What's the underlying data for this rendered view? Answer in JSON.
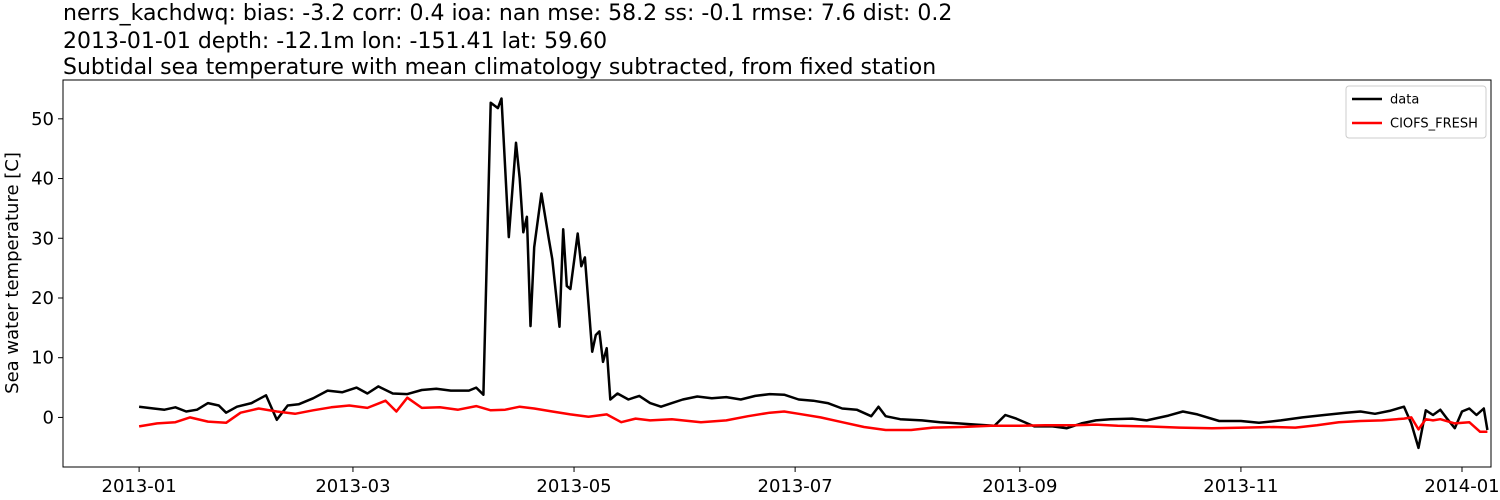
{
  "titles": [
    "nerrs_kachdwq: bias: -3.2  corr: 0.4  ioa: nan  mse: 58.2  ss: -0.1  rmse: 7.6  dist: 0.2",
    "2013-01-01 depth: -12.1m lon: -151.41 lat: 59.60",
    "Subtidal sea temperature with mean climatology subtracted, from fixed station"
  ],
  "chart_data": {
    "type": "line",
    "title": "nerrs_kachdwq: bias: -3.2  corr: 0.4  ioa: nan  mse: 58.2  ss: -0.1  rmse: 7.6  dist: 0.2",
    "xlabel": "",
    "ylabel": "Sea water temperature [C]",
    "ylim": [
      -8.3,
      56.5
    ],
    "xlim": [
      "2012-12-11",
      "2014-01-09"
    ],
    "x_ticks": [
      "2013-01",
      "2013-03",
      "2013-05",
      "2013-07",
      "2013-09",
      "2013-11",
      "2014-01"
    ],
    "y_ticks": [
      0,
      10,
      20,
      30,
      40,
      50
    ],
    "grid": false,
    "legend_position": "top-right",
    "series": [
      {
        "name": "data",
        "color": "#000000",
        "points": [
          [
            "2013-01-01",
            1.8
          ],
          [
            "2013-01-05",
            1.5
          ],
          [
            "2013-01-08",
            1.3
          ],
          [
            "2013-01-11",
            1.7
          ],
          [
            "2013-01-14",
            1.0
          ],
          [
            "2013-01-17",
            1.3
          ],
          [
            "2013-01-20",
            2.4
          ],
          [
            "2013-01-23",
            2.0
          ],
          [
            "2013-01-25",
            0.8
          ],
          [
            "2013-01-28",
            1.8
          ],
          [
            "2013-02-01",
            2.4
          ],
          [
            "2013-02-05",
            3.7
          ],
          [
            "2013-02-08",
            -0.4
          ],
          [
            "2013-02-11",
            2.0
          ],
          [
            "2013-02-14",
            2.2
          ],
          [
            "2013-02-18",
            3.2
          ],
          [
            "2013-02-22",
            4.5
          ],
          [
            "2013-02-26",
            4.2
          ],
          [
            "2013-03-02",
            5.0
          ],
          [
            "2013-03-05",
            4.0
          ],
          [
            "2013-03-08",
            5.2
          ],
          [
            "2013-03-12",
            4.0
          ],
          [
            "2013-03-16",
            3.9
          ],
          [
            "2013-03-20",
            4.6
          ],
          [
            "2013-03-24",
            4.8
          ],
          [
            "2013-03-28",
            4.5
          ],
          [
            "2013-04-02",
            4.5
          ],
          [
            "2013-04-04",
            5.0
          ],
          [
            "2013-04-06",
            3.8
          ],
          [
            "2013-04-08",
            52.7
          ],
          [
            "2013-04-10",
            51.8
          ],
          [
            "2013-04-11",
            53.4
          ],
          [
            "2013-04-13",
            30.2
          ],
          [
            "2013-04-15",
            46.0
          ],
          [
            "2013-04-16",
            40.0
          ],
          [
            "2013-04-17",
            31.0
          ],
          [
            "2013-04-18",
            33.6
          ],
          [
            "2013-04-19",
            15.3
          ],
          [
            "2013-04-20",
            28.5
          ],
          [
            "2013-04-22",
            37.5
          ],
          [
            "2013-04-24",
            30.0
          ],
          [
            "2013-04-25",
            26.5
          ],
          [
            "2013-04-27",
            15.2
          ],
          [
            "2013-04-28",
            31.5
          ],
          [
            "2013-04-29",
            22.0
          ],
          [
            "2013-04-30",
            21.5
          ],
          [
            "2013-05-02",
            30.8
          ],
          [
            "2013-05-03",
            25.3
          ],
          [
            "2013-05-04",
            26.8
          ],
          [
            "2013-05-06",
            11.0
          ],
          [
            "2013-05-07",
            13.8
          ],
          [
            "2013-05-08",
            14.4
          ],
          [
            "2013-05-09",
            9.3
          ],
          [
            "2013-05-10",
            11.6
          ],
          [
            "2013-05-11",
            3.0
          ],
          [
            "2013-05-13",
            4.0
          ],
          [
            "2013-05-16",
            3.0
          ],
          [
            "2013-05-19",
            3.6
          ],
          [
            "2013-05-22",
            2.4
          ],
          [
            "2013-05-25",
            1.8
          ],
          [
            "2013-05-28",
            2.4
          ],
          [
            "2013-05-31",
            3.0
          ],
          [
            "2013-06-04",
            3.5
          ],
          [
            "2013-06-08",
            3.2
          ],
          [
            "2013-06-12",
            3.4
          ],
          [
            "2013-06-16",
            3.0
          ],
          [
            "2013-06-20",
            3.6
          ],
          [
            "2013-06-24",
            3.9
          ],
          [
            "2013-06-28",
            3.8
          ],
          [
            "2013-07-02",
            3.0
          ],
          [
            "2013-07-06",
            2.8
          ],
          [
            "2013-07-10",
            2.4
          ],
          [
            "2013-07-14",
            1.5
          ],
          [
            "2013-07-18",
            1.3
          ],
          [
            "2013-07-22",
            0.2
          ],
          [
            "2013-07-24",
            1.8
          ],
          [
            "2013-07-26",
            0.2
          ],
          [
            "2013-07-30",
            -0.3
          ],
          [
            "2013-08-05",
            -0.5
          ],
          [
            "2013-08-10",
            -0.8
          ],
          [
            "2013-08-15",
            -1.0
          ],
          [
            "2013-08-20",
            -1.2
          ],
          [
            "2013-08-25",
            -1.4
          ],
          [
            "2013-08-28",
            0.4
          ],
          [
            "2013-08-31",
            -0.2
          ],
          [
            "2013-09-05",
            -1.5
          ],
          [
            "2013-09-10",
            -1.5
          ],
          [
            "2013-09-14",
            -1.8
          ],
          [
            "2013-09-18",
            -1.0
          ],
          [
            "2013-09-22",
            -0.5
          ],
          [
            "2013-09-26",
            -0.3
          ],
          [
            "2013-10-02",
            -0.2
          ],
          [
            "2013-10-06",
            -0.5
          ],
          [
            "2013-10-12",
            0.3
          ],
          [
            "2013-10-16",
            1.0
          ],
          [
            "2013-10-20",
            0.5
          ],
          [
            "2013-10-26",
            -0.6
          ],
          [
            "2013-11-01",
            -0.6
          ],
          [
            "2013-11-06",
            -0.9
          ],
          [
            "2013-11-12",
            -0.5
          ],
          [
            "2013-11-18",
            0.0
          ],
          [
            "2013-11-24",
            0.4
          ],
          [
            "2013-11-30",
            0.8
          ],
          [
            "2013-12-04",
            1.0
          ],
          [
            "2013-12-08",
            0.6
          ],
          [
            "2013-12-12",
            1.1
          ],
          [
            "2013-12-16",
            1.8
          ],
          [
            "2013-12-18",
            -1.0
          ],
          [
            "2013-12-20",
            -5.1
          ],
          [
            "2013-12-22",
            1.2
          ],
          [
            "2013-12-24",
            0.4
          ],
          [
            "2013-12-26",
            1.3
          ],
          [
            "2013-12-28",
            -0.3
          ],
          [
            "2013-12-30",
            -1.8
          ],
          [
            "2014-01-01",
            1.0
          ],
          [
            "2014-01-03",
            1.5
          ],
          [
            "2014-01-05",
            0.4
          ],
          [
            "2014-01-07",
            1.5
          ],
          [
            "2014-01-08",
            -2.1
          ]
        ]
      },
      {
        "name": "CIOFS_FRESH",
        "color": "#ff0000",
        "points": [
          [
            "2013-01-01",
            -1.5
          ],
          [
            "2013-01-06",
            -1.0
          ],
          [
            "2013-01-11",
            -0.8
          ],
          [
            "2013-01-15",
            0.0
          ],
          [
            "2013-01-20",
            -0.7
          ],
          [
            "2013-01-25",
            -0.9
          ],
          [
            "2013-01-29",
            0.8
          ],
          [
            "2013-02-03",
            1.5
          ],
          [
            "2013-02-08",
            1.0
          ],
          [
            "2013-02-13",
            0.6
          ],
          [
            "2013-02-18",
            1.2
          ],
          [
            "2013-02-23",
            1.7
          ],
          [
            "2013-02-28",
            2.0
          ],
          [
            "2013-03-05",
            1.6
          ],
          [
            "2013-03-10",
            2.8
          ],
          [
            "2013-03-13",
            1.0
          ],
          [
            "2013-03-16",
            3.3
          ],
          [
            "2013-03-20",
            1.6
          ],
          [
            "2013-03-25",
            1.7
          ],
          [
            "2013-03-30",
            1.3
          ],
          [
            "2013-04-04",
            1.9
          ],
          [
            "2013-04-08",
            1.2
          ],
          [
            "2013-04-12",
            1.3
          ],
          [
            "2013-04-16",
            1.8
          ],
          [
            "2013-04-20",
            1.5
          ],
          [
            "2013-04-25",
            1.0
          ],
          [
            "2013-04-30",
            0.5
          ],
          [
            "2013-05-05",
            0.1
          ],
          [
            "2013-05-10",
            0.5
          ],
          [
            "2013-05-14",
            -0.8
          ],
          [
            "2013-05-18",
            -0.2
          ],
          [
            "2013-05-22",
            -0.5
          ],
          [
            "2013-05-28",
            -0.3
          ],
          [
            "2013-06-05",
            -0.8
          ],
          [
            "2013-06-12",
            -0.5
          ],
          [
            "2013-06-18",
            0.2
          ],
          [
            "2013-06-24",
            0.8
          ],
          [
            "2013-06-28",
            1.0
          ],
          [
            "2013-07-02",
            0.6
          ],
          [
            "2013-07-08",
            0.0
          ],
          [
            "2013-07-14",
            -0.8
          ],
          [
            "2013-07-20",
            -1.6
          ],
          [
            "2013-07-26",
            -2.1
          ],
          [
            "2013-08-02",
            -2.1
          ],
          [
            "2013-08-08",
            -1.7
          ],
          [
            "2013-08-16",
            -1.6
          ],
          [
            "2013-08-24",
            -1.4
          ],
          [
            "2013-09-01",
            -1.4
          ],
          [
            "2013-09-08",
            -1.3
          ],
          [
            "2013-09-16",
            -1.3
          ],
          [
            "2013-09-22",
            -1.2
          ],
          [
            "2013-09-28",
            -1.4
          ],
          [
            "2013-10-06",
            -1.5
          ],
          [
            "2013-10-15",
            -1.7
          ],
          [
            "2013-10-24",
            -1.8
          ],
          [
            "2013-11-02",
            -1.7
          ],
          [
            "2013-11-10",
            -1.6
          ],
          [
            "2013-11-16",
            -1.7
          ],
          [
            "2013-11-22",
            -1.3
          ],
          [
            "2013-11-28",
            -0.8
          ],
          [
            "2013-12-04",
            -0.6
          ],
          [
            "2013-12-10",
            -0.5
          ],
          [
            "2013-12-16",
            -0.2
          ],
          [
            "2013-12-18",
            0.0
          ],
          [
            "2013-12-20",
            -2.0
          ],
          [
            "2013-12-22",
            -0.3
          ],
          [
            "2013-12-24",
            -0.5
          ],
          [
            "2013-12-26",
            -0.3
          ],
          [
            "2013-12-30",
            -1.0
          ],
          [
            "2014-01-03",
            -0.8
          ],
          [
            "2014-01-06",
            -2.4
          ],
          [
            "2014-01-08",
            -2.4
          ]
        ]
      }
    ]
  }
}
